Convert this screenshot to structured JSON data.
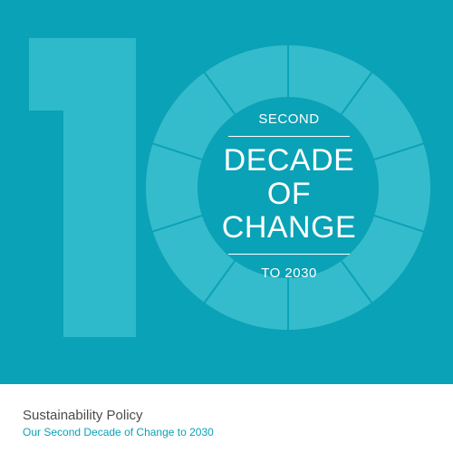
{
  "cover": {
    "background_color": "#0aa2b6",
    "numeral_color": "#2fbacb",
    "segment_color": "#35bccc",
    "center_color": "#0aa2b6",
    "line_color": "#0aa2b6",
    "top_label": "SECOND",
    "headline_lines": [
      "DECADE",
      "OF",
      "CHANGE"
    ],
    "bottom_label": "TO 2030"
  },
  "footer": {
    "title": "Sustainability Policy",
    "subtitle": "Our Second Decade of Change to 2030",
    "title_color": "#4b4b4b",
    "subtitle_color": "#0aa2b6"
  }
}
